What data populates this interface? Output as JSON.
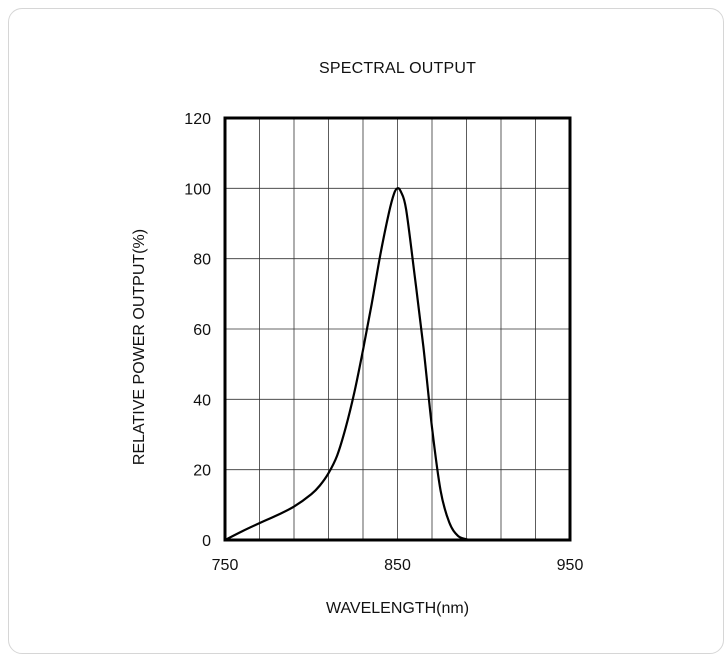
{
  "chart_data": {
    "type": "line",
    "title": "SPECTRAL OUTPUT",
    "xlabel": "WAVELENGTH(nm)",
    "ylabel": "RELATIVE POWER OUTPUT(%)",
    "xlim": [
      750,
      950
    ],
    "ylim": [
      0,
      120
    ],
    "x_ticks": [
      750,
      850,
      950
    ],
    "y_ticks": [
      0,
      20,
      40,
      60,
      80,
      100,
      120
    ],
    "x_grid_step": 20,
    "y_grid_step": 20,
    "grid": true,
    "line_color": "#000000",
    "series": [
      {
        "x": [
          750,
          760,
          770,
          780,
          790,
          800,
          805,
          810,
          815,
          820,
          825,
          830,
          835,
          840,
          845,
          848,
          850,
          852,
          855,
          860,
          865,
          870,
          875,
          880,
          885,
          890,
          893
        ],
        "y": [
          0,
          2.5,
          4.8,
          7,
          9.5,
          13,
          15.5,
          19,
          24,
          32,
          42,
          54,
          67,
          81,
          93,
          98.5,
          100,
          99,
          94,
          75,
          55,
          32,
          14,
          5,
          1.2,
          0.2,
          0
        ]
      }
    ]
  }
}
